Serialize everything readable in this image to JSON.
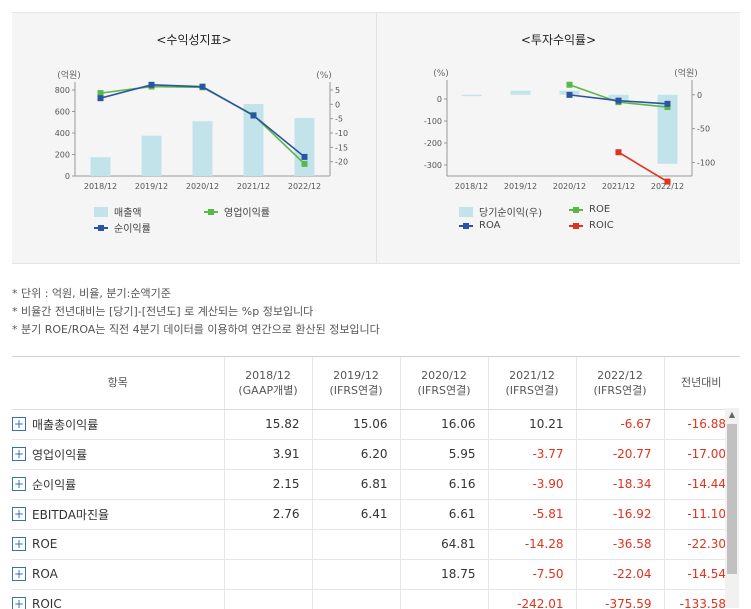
{
  "chart_data": [
    {
      "type": "bar+line",
      "title": "<수익성지표>",
      "left_axis_unit": "(억원)",
      "right_axis_unit": "(%)",
      "categories": [
        "2018/12",
        "2019/12",
        "2020/12",
        "2021/12",
        "2022/12"
      ],
      "ylim_left": [
        0,
        800
      ],
      "ylim_right": [
        -25,
        5
      ],
      "left_ticks": [
        "0",
        "200",
        "400",
        "600",
        "800"
      ],
      "right_ticks": [
        "5",
        "0",
        "-5",
        "-10",
        "-15",
        "-20"
      ],
      "series": [
        {
          "name": "매출액",
          "kind": "bar",
          "axis": "left",
          "color": "#c3e3ea",
          "values": [
            175,
            375,
            510,
            670,
            540
          ]
        },
        {
          "name": "영업이익률",
          "kind": "line",
          "axis": "right",
          "color": "#5ab946",
          "values": [
            3.91,
            6.2,
            5.95,
            -3.77,
            -20.77
          ]
        },
        {
          "name": "순이익률",
          "kind": "line",
          "axis": "right",
          "color": "#2b55a3",
          "values": [
            2.15,
            6.81,
            6.16,
            -3.9,
            -18.34
          ]
        }
      ],
      "legend": [
        "매출액",
        "영업이익률",
        "순이익률"
      ]
    },
    {
      "type": "bar+line",
      "title": "<투자수익률>",
      "left_axis_unit": "(%)",
      "right_axis_unit": "(억원)",
      "categories": [
        "2018/12",
        "2019/12",
        "2020/12",
        "2021/12",
        "2022/12"
      ],
      "ylim_left": [
        -350,
        50
      ],
      "ylim_right": [
        -120,
        10
      ],
      "left_ticks": [
        "0",
        "-100",
        "-200",
        "-300"
      ],
      "right_ticks": [
        "0",
        "-50",
        "-100"
      ],
      "series": [
        {
          "name": "당기순이익(우)",
          "kind": "bar",
          "axis": "right",
          "color": "#c3e3ea",
          "values": [
            -2,
            6,
            6,
            -9,
            -102
          ]
        },
        {
          "name": "ROE",
          "kind": "line",
          "axis": "left",
          "color": "#5ab946",
          "values": [
            null,
            null,
            64.81,
            -14.28,
            -36.58
          ]
        },
        {
          "name": "ROA",
          "kind": "line",
          "axis": "left",
          "color": "#2b55a3",
          "values": [
            null,
            null,
            18.75,
            -7.5,
            -22.04
          ]
        },
        {
          "name": "ROIC",
          "kind": "line",
          "axis": "left",
          "color": "#e0321d",
          "values": [
            null,
            null,
            null,
            -242.01,
            -375.59
          ]
        }
      ],
      "legend": [
        "당기순이익(우)",
        "ROE",
        "ROA",
        "ROIC"
      ]
    }
  ],
  "notes": [
    "* 단위 : 억원, 비율, 분기:순액기준",
    "* 비율간 전년대비는 [당기]-[전년도] 로 계산되는 %p 정보입니다",
    "* 분기 ROE/ROA는 직전 4분기 데이터를 이용하여 연간으로 환산된 정보입니다"
  ],
  "table": {
    "headers": [
      {
        "line1": "항목",
        "line2": ""
      },
      {
        "line1": "2018/12",
        "line2": "(GAAP개별)"
      },
      {
        "line1": "2019/12",
        "line2": "(IFRS연결)"
      },
      {
        "line1": "2020/12",
        "line2": "(IFRS연결)"
      },
      {
        "line1": "2021/12",
        "line2": "(IFRS연결)"
      },
      {
        "line1": "2022/12",
        "line2": "(IFRS연결)"
      },
      {
        "line1": "전년대비",
        "line2": ""
      }
    ],
    "expand_symbol": "+",
    "rows": [
      {
        "label": "매출총이익률",
        "values": [
          "15.82",
          "15.06",
          "16.06",
          "10.21",
          "-6.67",
          "-16.88"
        ]
      },
      {
        "label": "영업이익률",
        "values": [
          "3.91",
          "6.20",
          "5.95",
          "-3.77",
          "-20.77",
          "-17.00"
        ]
      },
      {
        "label": "순이익률",
        "values": [
          "2.15",
          "6.81",
          "6.16",
          "-3.90",
          "-18.34",
          "-14.44"
        ]
      },
      {
        "label": "EBITDA마진율",
        "values": [
          "2.76",
          "6.41",
          "6.61",
          "-5.81",
          "-16.92",
          "-11.10"
        ]
      },
      {
        "label": "ROE",
        "values": [
          "",
          "",
          "64.81",
          "-14.28",
          "-36.58",
          "-22.30"
        ]
      },
      {
        "label": "ROA",
        "values": [
          "",
          "",
          "18.75",
          "-7.50",
          "-22.04",
          "-14.54"
        ]
      },
      {
        "label": "ROIC",
        "values": [
          "",
          "",
          "",
          "-242.01",
          "-375.59",
          "-133.58"
        ]
      }
    ]
  },
  "scrollbar": {
    "up_arrow": "▲"
  }
}
